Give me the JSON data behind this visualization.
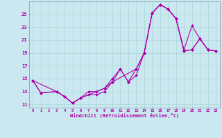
{
  "xlabel": "Windchill (Refroidissement éolien,°C)",
  "bg_color": "#cbe8f0",
  "grid_color": "#a8d8d8",
  "line_color": "#aa00aa",
  "xlim": [
    -0.5,
    23.5
  ],
  "ylim": [
    10.5,
    27.0
  ],
  "xticks": [
    0,
    1,
    2,
    3,
    4,
    5,
    6,
    7,
    8,
    9,
    10,
    11,
    12,
    13,
    14,
    15,
    16,
    17,
    18,
    19,
    20,
    21,
    22,
    23
  ],
  "yticks": [
    11,
    13,
    15,
    17,
    19,
    21,
    23,
    25
  ],
  "line1_x": [
    0,
    1,
    3,
    4,
    5,
    6,
    7,
    8,
    9,
    10,
    11,
    12,
    13,
    14,
    15,
    16,
    17,
    18,
    19,
    20,
    21,
    22,
    23
  ],
  "line1_y": [
    14.7,
    12.8,
    13.0,
    12.2,
    11.2,
    12.0,
    13.0,
    13.0,
    13.5,
    15.0,
    16.5,
    14.5,
    16.5,
    19.0,
    25.2,
    26.5,
    25.8,
    24.3,
    19.5,
    23.2,
    21.2,
    19.5,
    19.3
  ],
  "line2_x": [
    0,
    3,
    4,
    5,
    6,
    7,
    8,
    9,
    10,
    11,
    12,
    13,
    14,
    15,
    16,
    17,
    18,
    19,
    20,
    21,
    22,
    23
  ],
  "line2_y": [
    14.7,
    13.0,
    12.2,
    11.2,
    12.0,
    12.5,
    12.5,
    13.0,
    14.5,
    16.5,
    14.5,
    15.5,
    19.0,
    25.2,
    26.5,
    25.8,
    24.3,
    19.3,
    19.5,
    21.2,
    19.5,
    19.3
  ],
  "line3_x": [
    0,
    1,
    3,
    4,
    5,
    6,
    9,
    10,
    13,
    14,
    15,
    16,
    17,
    18,
    19,
    20,
    21,
    22,
    23
  ],
  "line3_y": [
    14.7,
    12.8,
    13.0,
    12.2,
    11.2,
    12.0,
    13.5,
    14.5,
    16.5,
    19.0,
    25.2,
    26.5,
    25.8,
    24.3,
    19.3,
    19.5,
    21.2,
    19.5,
    19.3
  ]
}
